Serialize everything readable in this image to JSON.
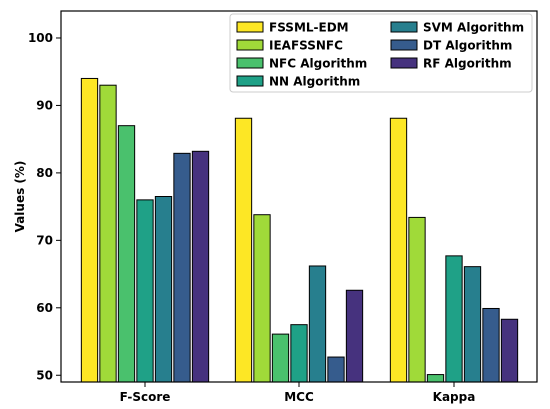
{
  "chart_data": {
    "type": "bar",
    "title": "",
    "xlabel": "",
    "ylabel": "Values (%)",
    "ylim": [
      49,
      104
    ],
    "yticks": [
      50,
      60,
      70,
      80,
      90,
      100
    ],
    "categories": [
      "F-Score",
      "MCC",
      "Kappa"
    ],
    "grid": false,
    "legend_position": "top-right",
    "series": [
      {
        "name": "FSSML-EDM",
        "color": "#fde725",
        "values": [
          94.0,
          88.1,
          88.1
        ]
      },
      {
        "name": "IEAFSSNFC",
        "color": "#a0da39",
        "values": [
          93.0,
          73.8,
          73.4
        ]
      },
      {
        "name": "NFC Algorithm",
        "color": "#4ac16d",
        "values": [
          87.0,
          56.1,
          50.1
        ]
      },
      {
        "name": "NN Algorithm",
        "color": "#1fa187",
        "values": [
          76.0,
          57.5,
          67.7
        ]
      },
      {
        "name": "SVM Algorithm",
        "color": "#277f8e",
        "values": [
          76.5,
          66.2,
          66.1
        ]
      },
      {
        "name": "DT Algorithm",
        "color": "#365c8d",
        "values": [
          82.9,
          52.7,
          59.9
        ]
      },
      {
        "name": "RF Algorithm",
        "color": "#46327e",
        "values": [
          83.2,
          62.6,
          58.3
        ]
      }
    ]
  }
}
